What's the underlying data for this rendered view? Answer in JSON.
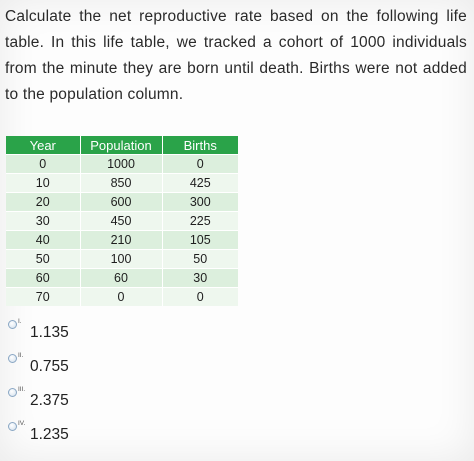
{
  "question": {
    "text": "Calculate the net reproductive rate based on the following life table. In this life table, we tracked a cohort of 1000 individuals from the minute they are born until death. Births were not added to the population column."
  },
  "life_table": {
    "headers": [
      "Year",
      "Population",
      "Births"
    ],
    "header_color": "#2aa349",
    "rows": [
      [
        "0",
        "1000",
        "0"
      ],
      [
        "10",
        "850",
        "425"
      ],
      [
        "20",
        "600",
        "300"
      ],
      [
        "30",
        "450",
        "225"
      ],
      [
        "40",
        "210",
        "105"
      ],
      [
        "50",
        "100",
        "50"
      ],
      [
        "60",
        "60",
        "30"
      ],
      [
        "70",
        "0",
        "0"
      ]
    ]
  },
  "options": [
    {
      "numeral": "I.",
      "value": "1.135",
      "selected": false
    },
    {
      "numeral": "II.",
      "value": "0.755",
      "selected": false
    },
    {
      "numeral": "III.",
      "value": "2.375",
      "selected": false
    },
    {
      "numeral": "IV.",
      "value": "1.235",
      "selected": false
    }
  ]
}
